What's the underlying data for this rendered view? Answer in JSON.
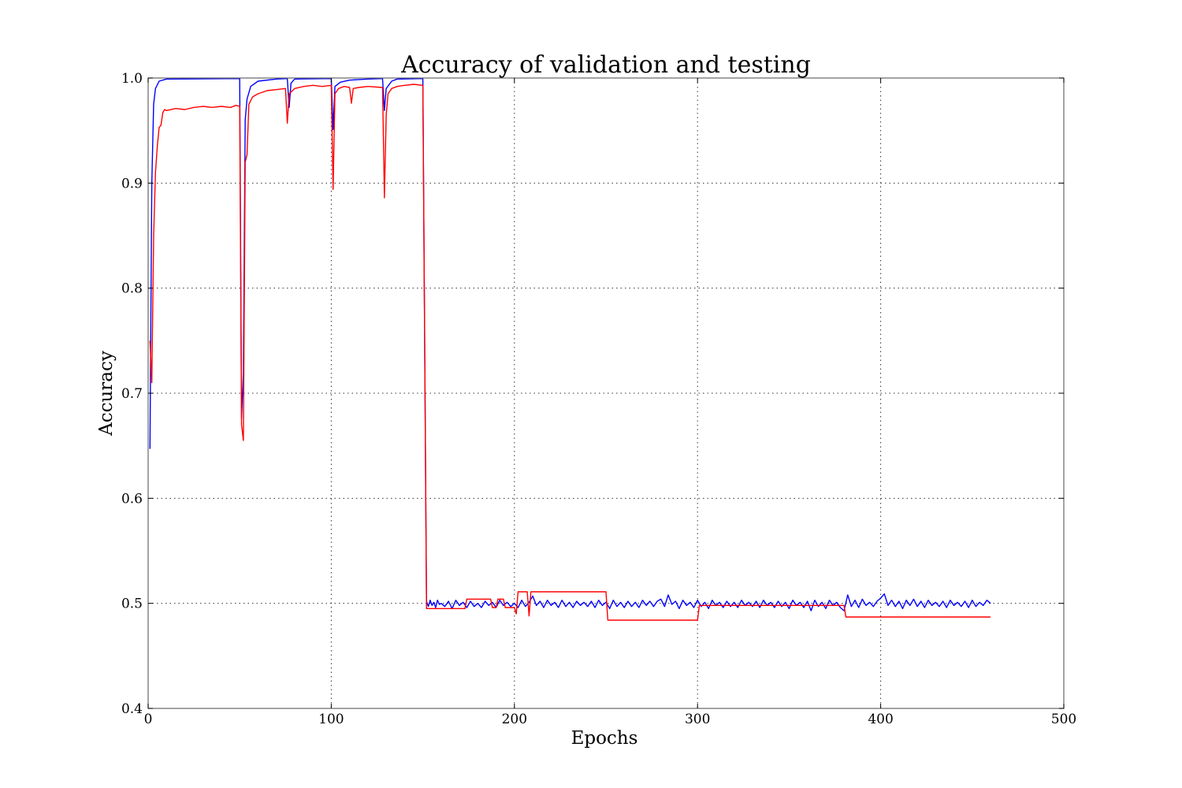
{
  "chart_data": {
    "type": "line",
    "title": "Accuracy of validation and testing",
    "xlabel": "Epochs",
    "ylabel": "Accuracy",
    "xlim": [
      0,
      500
    ],
    "ylim": [
      0.4,
      1.0
    ],
    "xticks": [
      0,
      100,
      200,
      300,
      400,
      500
    ],
    "xtick_labels": [
      "0",
      "100",
      "200",
      "300",
      "400",
      "500"
    ],
    "yticks": [
      0.4,
      0.5,
      0.6,
      0.7,
      0.8,
      0.9,
      1.0
    ],
    "ytick_labels": [
      "0.4",
      "0.5",
      "0.6",
      "0.7",
      "0.8",
      "0.9",
      "1.0"
    ],
    "grid": true,
    "series": [
      {
        "name": "validation",
        "color": "#0000ff",
        "points": [
          [
            1,
            0.647
          ],
          [
            2,
            0.9
          ],
          [
            3,
            0.975
          ],
          [
            4,
            0.99
          ],
          [
            6,
            0.997
          ],
          [
            10,
            0.999
          ],
          [
            50,
            0.9995
          ],
          [
            51,
            0.676
          ],
          [
            52,
            0.72
          ],
          [
            53,
            0.96
          ],
          [
            54,
            0.98
          ],
          [
            56,
            0.992
          ],
          [
            60,
            0.997
          ],
          [
            70,
            0.999
          ],
          [
            76,
            0.9995
          ],
          [
            77,
            0.972
          ],
          [
            78,
            0.995
          ],
          [
            80,
            0.999
          ],
          [
            100,
            0.9995
          ],
          [
            101,
            0.951
          ],
          [
            102,
            0.992
          ],
          [
            105,
            0.996
          ],
          [
            110,
            0.998
          ],
          [
            120,
            0.999
          ],
          [
            128,
            0.9995
          ],
          [
            129,
            0.969
          ],
          [
            130,
            0.99
          ],
          [
            133,
            0.997
          ],
          [
            136,
            0.999
          ],
          [
            150,
            0.9995
          ],
          [
            151,
            0.75
          ],
          [
            152,
            0.502
          ],
          [
            153,
            0.497
          ],
          [
            154,
            0.503
          ],
          [
            155,
            0.498
          ],
          [
            156,
            0.501
          ],
          [
            157,
            0.496
          ],
          [
            158,
            0.503
          ],
          [
            159,
            0.499
          ],
          [
            160,
            0.5
          ],
          [
            162,
            0.497
          ],
          [
            164,
            0.502
          ],
          [
            166,
            0.495
          ],
          [
            168,
            0.503
          ],
          [
            170,
            0.498
          ],
          [
            172,
            0.501
          ],
          [
            174,
            0.496
          ],
          [
            176,
            0.502
          ],
          [
            178,
            0.497
          ],
          [
            180,
            0.5
          ],
          [
            182,
            0.496
          ],
          [
            184,
            0.502
          ],
          [
            186,
            0.498
          ],
          [
            188,
            0.501
          ],
          [
            190,
            0.496
          ],
          [
            192,
            0.503
          ],
          [
            194,
            0.498
          ],
          [
            196,
            0.501
          ],
          [
            198,
            0.497
          ],
          [
            200,
            0.5
          ],
          [
            202,
            0.496
          ],
          [
            204,
            0.503
          ],
          [
            206,
            0.497
          ],
          [
            208,
            0.501
          ],
          [
            210,
            0.507
          ],
          [
            212,
            0.498
          ],
          [
            214,
            0.502
          ],
          [
            216,
            0.496
          ],
          [
            218,
            0.503
          ],
          [
            220,
            0.498
          ],
          [
            222,
            0.501
          ],
          [
            224,
            0.496
          ],
          [
            226,
            0.503
          ],
          [
            228,
            0.497
          ],
          [
            230,
            0.501
          ],
          [
            232,
            0.496
          ],
          [
            234,
            0.502
          ],
          [
            236,
            0.498
          ],
          [
            238,
            0.501
          ],
          [
            240,
            0.497
          ],
          [
            242,
            0.502
          ],
          [
            244,
            0.496
          ],
          [
            246,
            0.503
          ],
          [
            248,
            0.498
          ],
          [
            250,
            0.501
          ],
          [
            252,
            0.495
          ],
          [
            254,
            0.503
          ],
          [
            256,
            0.497
          ],
          [
            258,
            0.501
          ],
          [
            260,
            0.496
          ],
          [
            262,
            0.502
          ],
          [
            264,
            0.497
          ],
          [
            266,
            0.501
          ],
          [
            268,
            0.496
          ],
          [
            270,
            0.503
          ],
          [
            272,
            0.498
          ],
          [
            274,
            0.502
          ],
          [
            276,
            0.497
          ],
          [
            278,
            0.502
          ],
          [
            280,
            0.504
          ],
          [
            282,
            0.497
          ],
          [
            284,
            0.508
          ],
          [
            286,
            0.499
          ],
          [
            288,
            0.502
          ],
          [
            290,
            0.495
          ],
          [
            292,
            0.503
          ],
          [
            294,
            0.498
          ],
          [
            296,
            0.501
          ],
          [
            298,
            0.496
          ],
          [
            300,
            0.503
          ],
          [
            302,
            0.497
          ],
          [
            304,
            0.501
          ],
          [
            306,
            0.495
          ],
          [
            308,
            0.503
          ],
          [
            310,
            0.498
          ],
          [
            312,
            0.501
          ],
          [
            314,
            0.496
          ],
          [
            316,
            0.502
          ],
          [
            318,
            0.497
          ],
          [
            320,
            0.501
          ],
          [
            322,
            0.496
          ],
          [
            324,
            0.503
          ],
          [
            326,
            0.498
          ],
          [
            328,
            0.501
          ],
          [
            330,
            0.497
          ],
          [
            332,
            0.502
          ],
          [
            334,
            0.496
          ],
          [
            336,
            0.503
          ],
          [
            338,
            0.498
          ],
          [
            340,
            0.501
          ],
          [
            342,
            0.496
          ],
          [
            344,
            0.502
          ],
          [
            346,
            0.497
          ],
          [
            348,
            0.501
          ],
          [
            350,
            0.495
          ],
          [
            352,
            0.503
          ],
          [
            354,
            0.498
          ],
          [
            356,
            0.501
          ],
          [
            358,
            0.496
          ],
          [
            360,
            0.502
          ],
          [
            362,
            0.493
          ],
          [
            364,
            0.503
          ],
          [
            366,
            0.497
          ],
          [
            368,
            0.501
          ],
          [
            370,
            0.495
          ],
          [
            372,
            0.503
          ],
          [
            374,
            0.498
          ],
          [
            376,
            0.501
          ],
          [
            378,
            0.496
          ],
          [
            380,
            0.493
          ],
          [
            382,
            0.508
          ],
          [
            384,
            0.497
          ],
          [
            386,
            0.503
          ],
          [
            388,
            0.496
          ],
          [
            390,
            0.504
          ],
          [
            392,
            0.498
          ],
          [
            394,
            0.501
          ],
          [
            396,
            0.497
          ],
          [
            398,
            0.502
          ],
          [
            400,
            0.505
          ],
          [
            402,
            0.509
          ],
          [
            404,
            0.498
          ],
          [
            406,
            0.503
          ],
          [
            408,
            0.497
          ],
          [
            410,
            0.502
          ],
          [
            412,
            0.495
          ],
          [
            414,
            0.503
          ],
          [
            416,
            0.498
          ],
          [
            418,
            0.504
          ],
          [
            420,
            0.497
          ],
          [
            422,
            0.502
          ],
          [
            424,
            0.496
          ],
          [
            426,
            0.503
          ],
          [
            428,
            0.498
          ],
          [
            430,
            0.501
          ],
          [
            432,
            0.497
          ],
          [
            434,
            0.502
          ],
          [
            436,
            0.496
          ],
          [
            438,
            0.503
          ],
          [
            440,
            0.498
          ],
          [
            442,
            0.501
          ],
          [
            444,
            0.497
          ],
          [
            446,
            0.502
          ],
          [
            448,
            0.496
          ],
          [
            450,
            0.503
          ],
          [
            452,
            0.497
          ],
          [
            454,
            0.501
          ],
          [
            456,
            0.498
          ],
          [
            458,
            0.503
          ],
          [
            460,
            0.5
          ]
        ]
      },
      {
        "name": "testing",
        "color": "#ff0000",
        "points": [
          [
            1,
            0.75
          ],
          [
            2,
            0.71
          ],
          [
            3,
            0.85
          ],
          [
            4,
            0.91
          ],
          [
            5,
            0.935
          ],
          [
            6,
            0.953
          ],
          [
            7,
            0.955
          ],
          [
            8,
            0.967
          ],
          [
            9,
            0.97
          ],
          [
            10,
            0.969
          ],
          [
            15,
            0.971
          ],
          [
            20,
            0.97
          ],
          [
            25,
            0.972
          ],
          [
            30,
            0.973
          ],
          [
            35,
            0.972
          ],
          [
            40,
            0.973
          ],
          [
            45,
            0.972
          ],
          [
            48,
            0.974
          ],
          [
            50,
            0.973
          ],
          [
            51,
            0.67
          ],
          [
            52,
            0.655
          ],
          [
            53,
            0.92
          ],
          [
            54,
            0.927
          ],
          [
            55,
            0.975
          ],
          [
            57,
            0.982
          ],
          [
            60,
            0.985
          ],
          [
            65,
            0.988
          ],
          [
            70,
            0.989
          ],
          [
            75,
            0.99
          ],
          [
            76,
            0.957
          ],
          [
            77,
            0.985
          ],
          [
            80,
            0.99
          ],
          [
            85,
            0.992
          ],
          [
            90,
            0.993
          ],
          [
            95,
            0.992
          ],
          [
            100,
            0.993
          ],
          [
            101,
            0.894
          ],
          [
            102,
            0.985
          ],
          [
            104,
            0.99
          ],
          [
            107,
            0.992
          ],
          [
            110,
            0.991
          ],
          [
            111,
            0.976
          ],
          [
            112,
            0.99
          ],
          [
            115,
            0.991
          ],
          [
            120,
            0.992
          ],
          [
            128,
            0.991
          ],
          [
            129,
            0.886
          ],
          [
            130,
            0.965
          ],
          [
            131,
            0.985
          ],
          [
            133,
            0.99
          ],
          [
            136,
            0.992
          ],
          [
            140,
            0.993
          ],
          [
            145,
            0.994
          ],
          [
            150,
            0.993
          ],
          [
            151,
            0.75
          ],
          [
            152,
            0.495
          ],
          [
            173,
            0.495
          ],
          [
            174,
            0.504
          ],
          [
            187,
            0.504
          ],
          [
            188,
            0.496
          ],
          [
            190,
            0.496
          ],
          [
            191,
            0.504
          ],
          [
            194,
            0.504
          ],
          [
            195,
            0.496
          ],
          [
            200,
            0.496
          ],
          [
            201,
            0.49
          ],
          [
            202,
            0.511
          ],
          [
            207,
            0.511
          ],
          [
            208,
            0.488
          ],
          [
            209,
            0.511
          ],
          [
            250,
            0.511
          ],
          [
            251,
            0.484
          ],
          [
            300,
            0.484
          ],
          [
            301,
            0.498
          ],
          [
            380,
            0.498
          ],
          [
            381,
            0.487
          ],
          [
            460,
            0.487
          ]
        ]
      }
    ]
  }
}
